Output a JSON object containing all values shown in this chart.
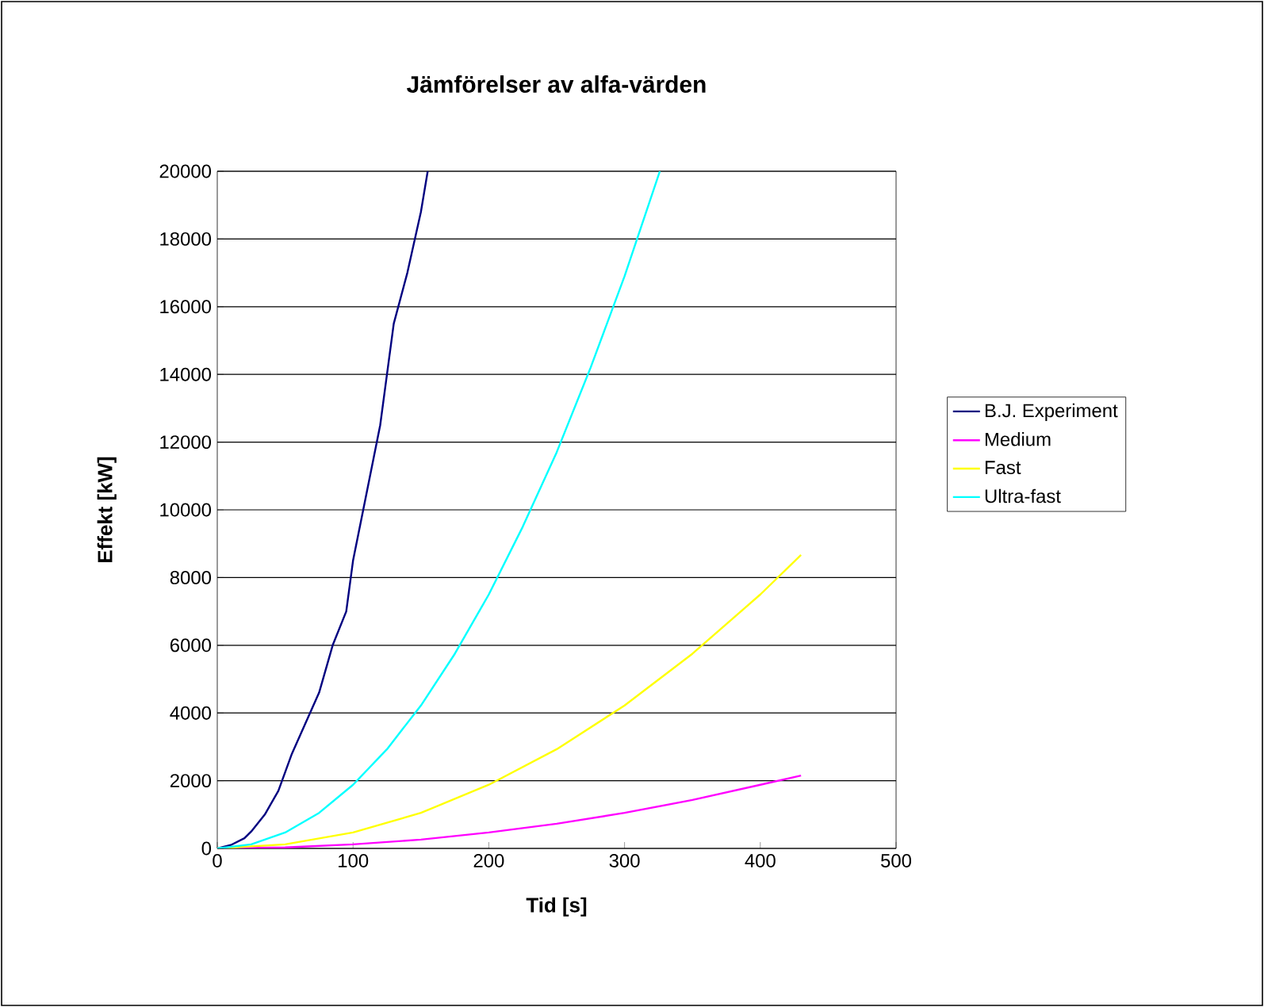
{
  "chart_data": {
    "type": "line",
    "title": "Jämförelser av alfa-värden",
    "xlabel": "Tid [s]",
    "ylabel": "Effekt [kW]",
    "xlim": [
      0,
      500
    ],
    "xticks": [
      0,
      100,
      200,
      300,
      400,
      500
    ],
    "ylim": [
      0,
      20000
    ],
    "yticks": [
      0,
      2000,
      4000,
      6000,
      8000,
      10000,
      12000,
      14000,
      16000,
      18000,
      20000
    ],
    "grid": "y",
    "legend": "right",
    "series": [
      {
        "name": "B.J. Experiment",
        "color": "#000080",
        "x": [
          0,
          10,
          20,
          25,
          35,
          45,
          55,
          65,
          75,
          85,
          95,
          100,
          110,
          120,
          125,
          130,
          140,
          150,
          155
        ],
        "values": [
          0,
          100,
          300,
          500,
          1000,
          1700,
          2800,
          3700,
          4600,
          6000,
          7000,
          8500,
          10500,
          12500,
          14000,
          15500,
          17000,
          18800,
          20000
        ]
      },
      {
        "name": "Medium",
        "color": "#ff00ff",
        "x": [
          0,
          50,
          100,
          150,
          200,
          250,
          300,
          350,
          400,
          430
        ],
        "values": [
          0,
          30,
          120,
          260,
          470,
          730,
          1050,
          1430,
          1880,
          2150
        ]
      },
      {
        "name": "Fast",
        "color": "#ffff00",
        "x": [
          0,
          50,
          100,
          150,
          200,
          250,
          300,
          350,
          400,
          430
        ],
        "values": [
          0,
          120,
          470,
          1050,
          1880,
          2930,
          4220,
          5750,
          7500,
          8670
        ]
      },
      {
        "name": "Ultra-fast",
        "color": "#00ffff",
        "x": [
          0,
          25,
          50,
          75,
          100,
          125,
          150,
          175,
          200,
          225,
          250,
          275,
          300,
          326
        ],
        "values": [
          0,
          120,
          470,
          1050,
          1880,
          2930,
          4220,
          5750,
          7500,
          9500,
          11700,
          14200,
          16900,
          20000
        ]
      }
    ]
  }
}
